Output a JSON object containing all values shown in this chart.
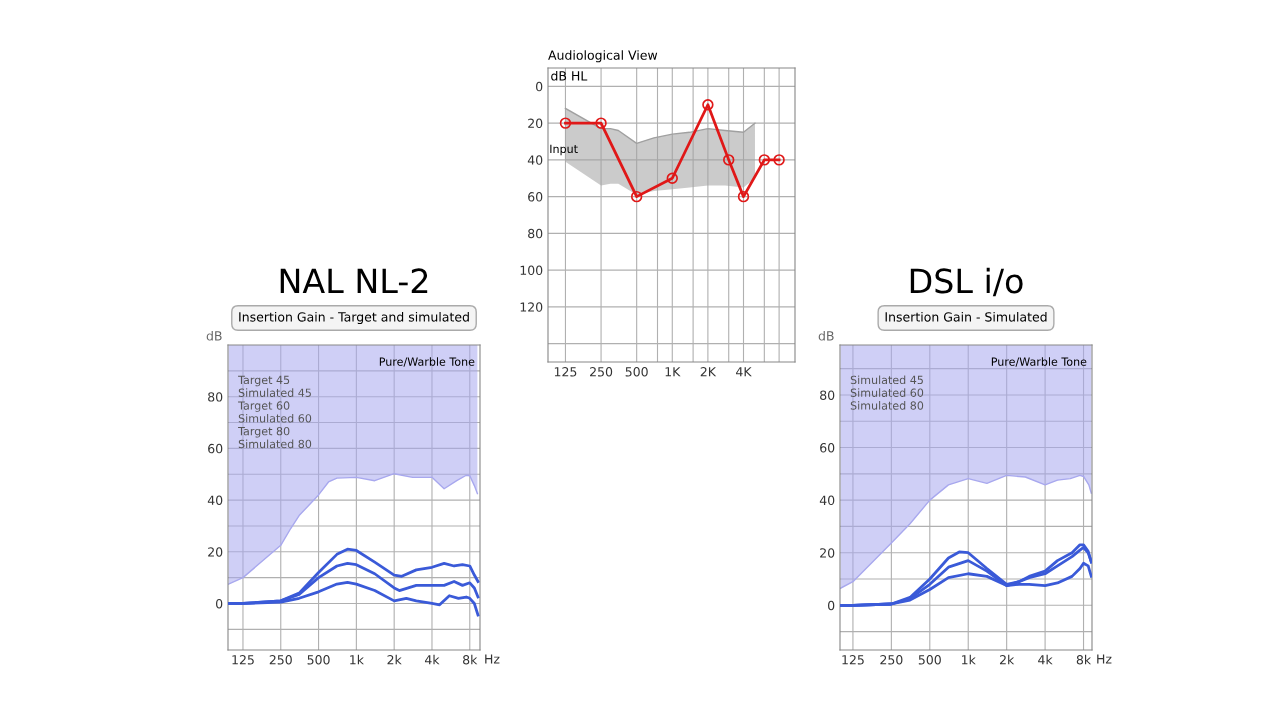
{
  "chart_data": [
    {
      "type": "line",
      "title": "Audiological View",
      "ylabel": "dB HL",
      "log": "x",
      "grid": true,
      "legend": false,
      "marker": "circle",
      "xlim": [
        89,
        10900
      ],
      "xticks": [
        {
          "value": 125,
          "label": "125"
        },
        250,
        500,
        {
          "value": 750,
          "label": null
        },
        {
          "value": 1000,
          "label": "1K"
        },
        {
          "value": 1500,
          "label": null
        },
        {
          "value": 2000,
          "label": "2K"
        },
        {
          "value": 3000,
          "label": null
        },
        {
          "value": 4000,
          "label": "4K"
        },
        {
          "value": 6000,
          "label": null
        },
        {
          "value": 8000,
          "label": null
        }
      ],
      "ylim": [
        150,
        -10
      ],
      "yticks": [
        0,
        20,
        40,
        60,
        80,
        100,
        120,
        {
          "value": 140,
          "label": null
        }
      ],
      "annotations": [
        "Input"
      ],
      "series": [
        {
          "type": "line",
          "marker": "none",
          "color": "#a0a0a0",
          "x": [
            125,
            250,
            300,
            350,
            500,
            700,
            1000,
            1400,
            2000,
            2800,
            4000,
            5000
          ],
          "values": [
            12,
            23,
            23,
            24,
            31,
            28,
            26,
            25,
            23,
            24,
            25,
            20
          ],
          "lower": [
            12,
            23,
            23,
            24,
            31,
            28,
            26,
            25,
            23,
            24,
            25,
            20
          ],
          "upper": [
            41,
            54,
            53,
            53,
            59,
            57,
            56,
            55,
            54,
            54,
            55,
            50
          ]
        },
        {
          "type": "line",
          "color": "#e01818",
          "x": [
            125,
            250,
            500,
            1000,
            2000,
            3000,
            4000,
            6000,
            8000
          ],
          "values": [
            20,
            20,
            60,
            50,
            10,
            40,
            60,
            40,
            40
          ]
        }
      ]
    },
    {
      "type": "line",
      "title": "NAL NL-2",
      "subtitle": "Insertion Gain - Target and simulated",
      "ylabel": "dB",
      "xlabel": "Hz",
      "log": "x",
      "grid": true,
      "legend": false,
      "marker": "none",
      "xlim": [
        95,
        9650
      ],
      "xticks": [
        125,
        250,
        500,
        {
          "value": 1000,
          "label": "1k"
        },
        {
          "value": 2000,
          "label": "2k"
        },
        {
          "value": 4000,
          "label": "4k"
        },
        {
          "value": 8000,
          "label": "8k"
        }
      ],
      "ylim": [
        -18,
        100
      ],
      "yticks": [
        {
          "value": -10,
          "label": null
        },
        0,
        {
          "value": 10,
          "label": null
        },
        20,
        {
          "value": 30,
          "label": null
        },
        40,
        {
          "value": 50,
          "label": null
        },
        60,
        {
          "value": 70,
          "label": null
        },
        80,
        {
          "value": 90,
          "label": null
        }
      ],
      "annotations": [
        "Pure/Warble Tone",
        "Target 45",
        "Simulated 45",
        "Target 60",
        "Simulated 60",
        "Target 80",
        "Simulated 80"
      ],
      "series": [
        {
          "type": "line",
          "color": "#a8a8ee",
          "x": [
            96,
            125,
            250,
            300,
            350,
            500,
            600,
            700,
            1000,
            1400,
            2000,
            2800,
            4000,
            5000,
            6300,
            7500,
            8000,
            8700,
            9200
          ],
          "values": [
            7.5,
            10,
            22.5,
            29,
            34,
            42,
            47,
            48.5,
            48.8,
            47.5,
            50.2,
            48.8,
            48.8,
            44.4,
            47.5,
            49.6,
            49.4,
            45.6,
            42.5
          ],
          "lower": [
            7.5,
            10,
            22.5,
            29,
            34,
            42,
            47,
            48.5,
            48.8,
            47.5,
            50.2,
            48.8,
            48.8,
            44.4,
            47.5,
            49.6,
            49.4,
            45.6,
            42.5
          ],
          "upper": [
            100,
            100,
            100,
            100,
            100,
            100,
            100,
            100,
            100,
            100,
            100,
            100,
            100,
            100,
            100,
            100,
            100,
            100,
            100
          ]
        },
        {
          "color": "#3a5ad8",
          "x": [
            96,
            125,
            250,
            350,
            500,
            700,
            850,
            1000,
            1400,
            2000,
            2300,
            3000,
            4000,
            5000,
            6000,
            7000,
            8000,
            8700,
            9300
          ],
          "values": [
            0,
            0,
            1,
            4,
            12,
            19,
            21,
            20.5,
            16,
            11,
            10.5,
            13,
            14,
            15.5,
            14.5,
            15,
            14.5,
            11,
            8.5
          ]
        },
        {
          "color": "#3a5ad8",
          "x": [
            96,
            125,
            250,
            350,
            500,
            700,
            850,
            1000,
            1400,
            2000,
            2200,
            3000,
            4000,
            5000,
            6000,
            7000,
            8000,
            8700,
            9300
          ],
          "values": [
            0,
            0,
            1,
            3.5,
            10,
            14.5,
            15.5,
            15,
            11.5,
            6,
            5,
            7,
            7,
            7,
            8.5,
            7,
            8,
            6,
            2.5
          ]
        },
        {
          "color": "#3a5ad8",
          "x": [
            96,
            125,
            250,
            350,
            500,
            700,
            850,
            1000,
            1400,
            2000,
            2500,
            3000,
            4000,
            4600,
            5500,
            6500,
            7500,
            8000,
            8700,
            9300
          ],
          "values": [
            0,
            0,
            0.5,
            2,
            4.5,
            7.5,
            8.2,
            7.5,
            5,
            1,
            2,
            1,
            0,
            -0.5,
            3,
            2,
            2.5,
            2,
            0,
            -4.5
          ]
        }
      ]
    },
    {
      "type": "line",
      "title": "DSL i/o",
      "subtitle": "Insertion Gain - Simulated",
      "ylabel": "dB",
      "xlabel": "Hz",
      "log": "x",
      "grid": true,
      "legend": false,
      "marker": "none",
      "xlim": [
        99,
        9320
      ],
      "xticks": [
        125,
        250,
        500,
        {
          "value": 1000,
          "label": "1k"
        },
        {
          "value": 2000,
          "label": "2k"
        },
        {
          "value": 4000,
          "label": "4k"
        },
        {
          "value": 8000,
          "label": "8k"
        }
      ],
      "ylim": [
        -17,
        99
      ],
      "yticks": [
        {
          "value": -10,
          "label": null
        },
        0,
        {
          "value": 10,
          "label": null
        },
        20,
        {
          "value": 30,
          "label": null
        },
        40,
        {
          "value": 50,
          "label": null
        },
        60,
        {
          "value": 70,
          "label": null
        },
        80,
        {
          "value": 90,
          "label": null
        }
      ],
      "annotations": [
        "Pure/Warble Tone",
        "Simulated 45",
        "Simulated 60",
        "Simulated 80"
      ],
      "series": [
        {
          "type": "line",
          "color": "#a8a8ee",
          "x": [
            100,
            125,
            250,
            350,
            500,
            700,
            1000,
            1400,
            2000,
            2800,
            4000,
            5000,
            6300,
            7500,
            8000,
            8800,
            9200
          ],
          "values": [
            6.5,
            9,
            23.7,
            31,
            40,
            45.8,
            48.2,
            46.4,
            49.4,
            48.8,
            45.8,
            47.6,
            48.2,
            49.4,
            49,
            45.8,
            42.7
          ],
          "lower": [
            6.5,
            9,
            23.7,
            31,
            40,
            45.8,
            48.2,
            46.4,
            49.4,
            48.8,
            45.8,
            47.6,
            48.2,
            49.4,
            49,
            45.8,
            42.7
          ],
          "upper": [
            99,
            99,
            99,
            99,
            99,
            99,
            99,
            99,
            99,
            99,
            99,
            99,
            99,
            99,
            99,
            99,
            99
          ]
        },
        {
          "color": "#3a5ad8",
          "x": [
            100,
            125,
            250,
            350,
            500,
            700,
            850,
            1000,
            1400,
            2000,
            2500,
            3000,
            4000,
            5000,
            6500,
            7500,
            8000,
            8700,
            9200
          ],
          "values": [
            0,
            0,
            0.5,
            3,
            10,
            18,
            20.3,
            20,
            14,
            8,
            9,
            11,
            13,
            17,
            20,
            23,
            23,
            20.5,
            16.5
          ]
        },
        {
          "color": "#3a5ad8",
          "x": [
            100,
            125,
            250,
            350,
            500,
            700,
            1000,
            1400,
            2000,
            2500,
            3000,
            4000,
            5000,
            6500,
            7500,
            8000,
            8700,
            9200
          ],
          "values": [
            0,
            0,
            0.5,
            2.5,
            8,
            14.5,
            17,
            13,
            7.5,
            9,
            10.5,
            12,
            15,
            18.5,
            21,
            22,
            20,
            16.5
          ]
        },
        {
          "color": "#3a5ad8",
          "x": [
            100,
            125,
            250,
            350,
            500,
            700,
            1000,
            1400,
            2000,
            2500,
            3000,
            4000,
            5000,
            6500,
            7500,
            8000,
            8700,
            9200
          ],
          "values": [
            0,
            0,
            0.5,
            2,
            6,
            10.5,
            12,
            11,
            7.5,
            8,
            8,
            7.5,
            8.5,
            11,
            14,
            16,
            15,
            11
          ]
        }
      ]
    }
  ]
}
